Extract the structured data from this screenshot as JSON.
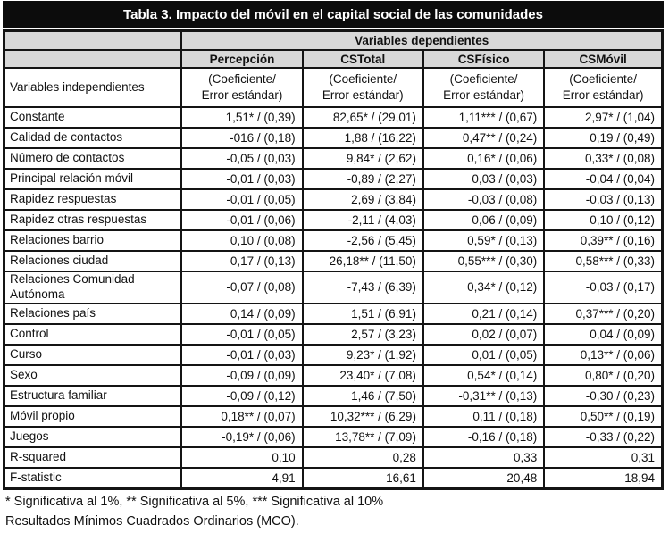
{
  "title": "Tabla 3. Impacto del móvil en el capital social de las comunidades",
  "table": {
    "dependent_header": "Variables dependientes",
    "independent_header": "Variables independientes",
    "columns": [
      "Percepción",
      "CSTotal",
      "CSFísico",
      "CSMóvil"
    ],
    "subheader": "(Coeficiente/\nError estándar)",
    "rows": [
      {
        "label": "Constante",
        "values": [
          "1,51* / (0,39)",
          "82,65* / (29,01)",
          "1,11*** / (0,67)",
          "2,97* / (1,04)"
        ]
      },
      {
        "label": "Calidad de contactos",
        "values": [
          "-016 / (0,18)",
          "1,88 / (16,22)",
          "0,47** / (0,24)",
          "0,19 / (0,49)"
        ]
      },
      {
        "label": "Número de contactos",
        "values": [
          "-0,05 / (0,03)",
          "9,84* / (2,62)",
          "0,16* / (0,06)",
          "0,33* / (0,08)"
        ]
      },
      {
        "label": "Principal relación móvil",
        "values": [
          "-0,01 / (0,03)",
          "-0,89 / (2,27)",
          "0,03 / (0,03)",
          "-0,04 / (0,04)"
        ]
      },
      {
        "label": "Rapidez respuestas",
        "values": [
          "-0,01 / (0,05)",
          "2,69 / (3,84)",
          "-0,03 / (0,08)",
          "-0,03 / (0,13)"
        ]
      },
      {
        "label": "Rapidez otras respuestas",
        "values": [
          "-0,01 / (0,06)",
          "-2,11 / (4,03)",
          "0,06 / (0,09)",
          "0,10 / (0,12)"
        ]
      },
      {
        "label": "Relaciones barrio",
        "values": [
          "0,10 / (0,08)",
          "-2,56 / (5,45)",
          "0,59* / (0,13)",
          "0,39** / (0,16)"
        ]
      },
      {
        "label": "Relaciones ciudad",
        "values": [
          "0,17 / (0,13)",
          "26,18** / (11,50)",
          "0,55*** / (0,30)",
          "0,58*** / (0,33)"
        ]
      },
      {
        "label": "Relaciones Comunidad Autónoma",
        "values": [
          "-0,07 / (0,08)",
          "-7,43 / (6,39)",
          "0,34* / (0,12)",
          "-0,03 / (0,17)"
        ]
      },
      {
        "label": "Relaciones país",
        "values": [
          "0,14 / (0,09)",
          "1,51 / (6,91)",
          "0,21 / (0,14)",
          "0,37*** / (0,20)"
        ]
      },
      {
        "label": "Control",
        "values": [
          "-0,01 / (0,05)",
          "2,57 / (3,23)",
          "0,02 / (0,07)",
          "0,04 / (0,09)"
        ]
      },
      {
        "label": "Curso",
        "values": [
          "-0,01 / (0,03)",
          "9,23* / (1,92)",
          "0,01 / (0,05)",
          "0,13** / (0,06)"
        ]
      },
      {
        "label": "Sexo",
        "values": [
          "-0,09 / (0,09)",
          "23,40* / (7,08)",
          "0,54* / (0,14)",
          "0,80* / (0,20)"
        ]
      },
      {
        "label": "Estructura familiar",
        "values": [
          "-0,09 / (0,12)",
          "1,46 / (7,50)",
          "-0,31** / (0,13)",
          "-0,30 / (0,23)"
        ]
      },
      {
        "label": "Móvil propio",
        "values": [
          "0,18** / (0,07)",
          "10,32*** / (6,29)",
          "0,11 / (0,18)",
          "0,50** / (0,19)"
        ]
      },
      {
        "label": "Juegos",
        "values": [
          "-0,19* / (0,06)",
          "13,78** / (7,09)",
          "-0,16 / (0,18)",
          "-0,33 / (0,22)"
        ]
      },
      {
        "label": "R-squared",
        "values": [
          "0,10",
          "0,28",
          "0,33",
          "0,31"
        ]
      },
      {
        "label": "F-statistic",
        "values": [
          "4,91",
          "16,61",
          "20,48",
          "18,94"
        ]
      }
    ]
  },
  "footnotes": [
    "* Significativa al 1%, ** Significativa al 5%, *** Significativa al 10%",
    "Resultados Mínimos Cuadrados Ordinarios (MCO)."
  ],
  "colors": {
    "title_bg": "#0c0c0c",
    "header_bg": "#d8d8d8",
    "border": "#141414"
  }
}
